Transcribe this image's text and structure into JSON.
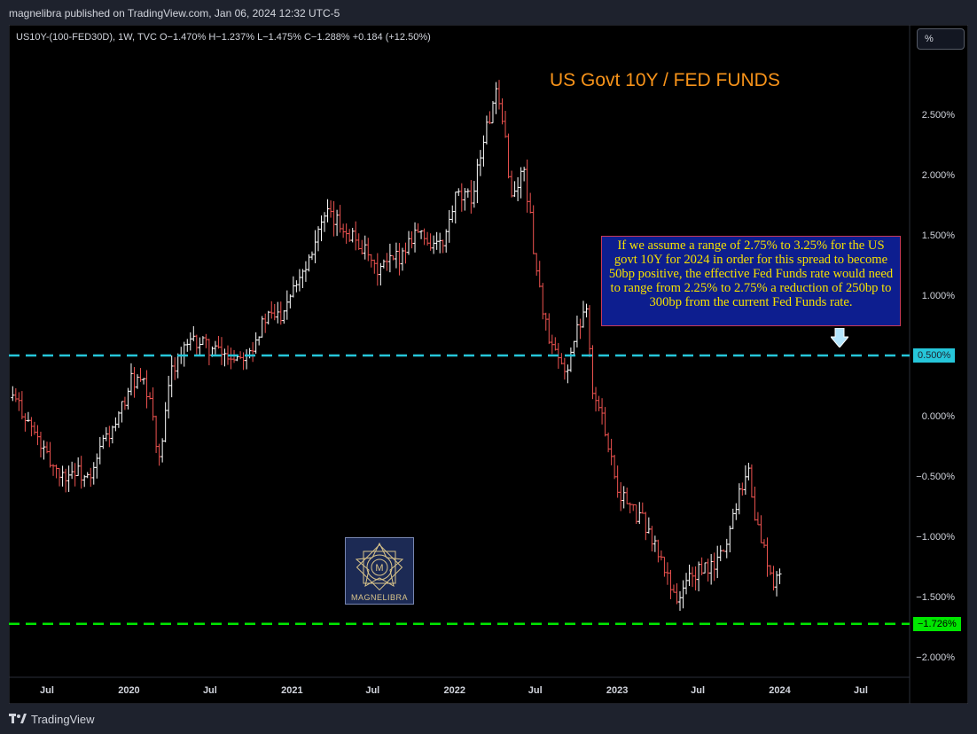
{
  "header": {
    "published": "magnelibra published on TradingView.com, Jan 06, 2024 12:32 UTC-5"
  },
  "footer": {
    "brand": "TradingView"
  },
  "symbol_line": "US10Y-(100-FED30D), 1W, TVC  O−1.470%  H−1.237%  L−1.475%  C−1.288%  +0.184 (+12.50%)",
  "scale_button": "%",
  "title": "US Govt 10Y / FED FUNDS",
  "annotation_text": "If we assume a range of 2.75% to 3.25% for the US govt 10Y for 2024 in order for this spread to become 50bp positive, the effective Fed Funds rate would need to range from 2.25% to 2.75% a reduction of 250bp to 300bp from the current Fed Funds rate.",
  "watermark": "MAGNELIBRA",
  "colors": {
    "up": "#ffffff",
    "down": "#ef5350",
    "cyan_line": "#26c6da",
    "green_line": "#00e600",
    "title": "#f7931a",
    "annotation_bg": "#0d1e8f",
    "annotation_text": "#f5e000"
  },
  "chart_data": {
    "type": "line",
    "y_unit": "%",
    "ylim": [
      -2.2,
      3.0
    ],
    "y_ticks": [
      2.5,
      2.0,
      1.5,
      1.0,
      0.5,
      0.0,
      -0.5,
      -1.0,
      -1.5,
      -2.0
    ],
    "y_tick_labels": [
      "2.500%",
      "2.000%",
      "1.500%",
      "1.000%",
      "0.500%",
      "0.000%",
      "−0.500%",
      "−1.000%",
      "−1.500%",
      "−2.000%"
    ],
    "x_ticks": [
      {
        "label": "Jul",
        "date": "2019-07-01"
      },
      {
        "label": "2020",
        "date": "2020-01-01"
      },
      {
        "label": "Jul",
        "date": "2020-07-01"
      },
      {
        "label": "2021",
        "date": "2021-01-01"
      },
      {
        "label": "Jul",
        "date": "2021-07-01"
      },
      {
        "label": "2022",
        "date": "2022-01-01"
      },
      {
        "label": "Jul",
        "date": "2022-07-01"
      },
      {
        "label": "2023",
        "date": "2023-01-01"
      },
      {
        "label": "Jul",
        "date": "2023-07-01"
      },
      {
        "label": "2024",
        "date": "2024-01-01"
      },
      {
        "label": "Jul",
        "date": "2024-07-01"
      }
    ],
    "series": [
      {
        "name": "",
        "x": [
          "2019-04-15",
          "2019-05-06",
          "2019-06-03",
          "2019-07-01",
          "2019-08-05",
          "2019-09-02",
          "2019-10-07",
          "2019-11-04",
          "2019-12-02",
          "2020-01-06",
          "2020-02-03",
          "2020-02-24",
          "2020-03-09",
          "2020-04-06",
          "2020-05-04",
          "2020-06-01",
          "2020-07-06",
          "2020-08-03",
          "2020-09-07",
          "2020-10-05",
          "2020-11-02",
          "2020-12-07",
          "2021-01-04",
          "2021-02-01",
          "2021-03-01",
          "2021-03-22",
          "2021-05-03",
          "2021-06-07",
          "2021-07-05",
          "2021-08-02",
          "2021-09-06",
          "2021-10-04",
          "2021-11-01",
          "2021-12-06",
          "2022-01-03",
          "2022-02-07",
          "2022-03-07",
          "2022-04-04",
          "2022-04-25",
          "2022-05-09",
          "2022-06-06",
          "2022-07-04",
          "2022-08-01",
          "2022-09-05",
          "2022-10-03",
          "2022-10-24",
          "2022-11-07",
          "2022-12-05",
          "2023-01-02",
          "2023-02-06",
          "2023-03-06",
          "2023-04-03",
          "2023-05-01",
          "2023-05-22",
          "2023-06-05",
          "2023-07-03",
          "2023-08-07",
          "2023-09-04",
          "2023-10-02",
          "2023-10-23",
          "2023-11-06",
          "2023-12-04",
          "2023-12-18",
          "2024-01-01"
        ],
        "close": [
          0.15,
          0.05,
          -0.15,
          -0.35,
          -0.5,
          -0.45,
          -0.55,
          -0.2,
          -0.1,
          0.3,
          0.25,
          0.0,
          -0.4,
          0.4,
          0.55,
          0.62,
          0.55,
          0.5,
          0.5,
          0.6,
          0.8,
          0.85,
          1.1,
          1.25,
          1.55,
          1.65,
          1.55,
          1.4,
          1.2,
          1.25,
          1.35,
          1.55,
          1.45,
          1.4,
          1.8,
          1.8,
          2.3,
          2.65,
          2.3,
          1.8,
          2.05,
          1.2,
          0.6,
          0.35,
          0.7,
          0.95,
          0.2,
          -0.1,
          -0.6,
          -0.8,
          -0.9,
          -1.15,
          -1.4,
          -1.55,
          -1.35,
          -1.3,
          -1.25,
          -1.05,
          -0.6,
          -0.45,
          -0.85,
          -1.2,
          -1.45,
          -1.29
        ]
      }
    ],
    "horizontal_lines": [
      {
        "value": 0.5,
        "label": "0.500%",
        "color": "#26c6da"
      },
      {
        "value": -1.726,
        "label": "−1.726%",
        "color": "#00e600"
      }
    ],
    "legend": "none"
  }
}
